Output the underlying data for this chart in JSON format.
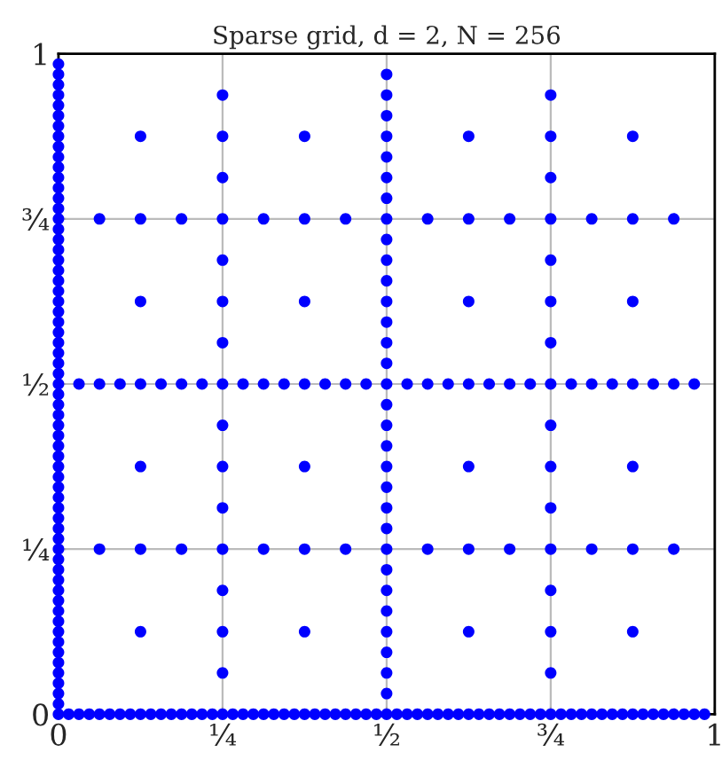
{
  "chart_data": {
    "type": "scatter",
    "title": "Sparse grid, d = 2, N = 256",
    "xlim": [
      0,
      1
    ],
    "ylim": [
      0,
      1
    ],
    "xticks": [
      0,
      {
        "value": 0.25,
        "label": "¼"
      },
      {
        "value": 0.5,
        "label": "½"
      },
      {
        "value": 0.75,
        "label": "¾"
      },
      1
    ],
    "yticks": [
      0,
      {
        "value": 0.25,
        "label": "¼"
      },
      {
        "value": 0.5,
        "label": "½"
      },
      {
        "value": 0.75,
        "label": "¾"
      },
      1
    ],
    "grid": true,
    "marker": "circle",
    "series": [
      {
        "color": "#0000ff",
        "x": [
          0,
          0,
          0,
          0,
          0,
          0,
          0,
          0,
          0,
          0,
          0,
          0,
          0,
          0,
          0,
          0,
          0,
          0,
          0,
          0,
          0,
          0,
          0,
          0,
          0,
          0,
          0,
          0,
          0,
          0,
          0,
          0,
          0,
          0,
          0,
          0,
          0,
          0,
          0,
          0,
          0,
          0,
          0,
          0,
          0,
          0,
          0,
          0,
          0,
          0,
          0,
          0,
          0,
          0,
          0,
          0,
          0,
          0,
          0,
          0,
          0,
          0,
          0,
          0
        ],
        "values": [
          0,
          0.015625,
          0.03125,
          0.046875,
          0.0625,
          0.078125,
          0.09375,
          0.109375,
          0.125,
          0.140625,
          0.15625,
          0.171875,
          0.1875,
          0.203125,
          0.21875,
          0.234375,
          0.25,
          0.265625,
          0.28125,
          0.296875,
          0.3125,
          0.328125,
          0.34375,
          0.359375,
          0.375,
          0.390625,
          0.40625,
          0.421875,
          0.4375,
          0.453125,
          0.46875,
          0.484375,
          0.5,
          0.515625,
          0.53125,
          0.546875,
          0.5625,
          0.578125,
          0.59375,
          0.609375,
          0.625,
          0.640625,
          0.65625,
          0.671875,
          0.6875,
          0.703125,
          0.71875,
          0.734375,
          0.75,
          0.765625,
          0.78125,
          0.796875,
          0.8125,
          0.828125,
          0.84375,
          0.859375,
          0.875,
          0.890625,
          0.90625,
          0.921875,
          0.9375,
          0.953125,
          0.96875,
          0.984375
        ]
      },
      {
        "color": "#0000ff",
        "x": [
          0.5,
          0.5,
          0.5,
          0.5,
          0.5,
          0.5,
          0.5,
          0.5,
          0.5,
          0.5,
          0.5,
          0.5,
          0.5,
          0.5,
          0.5,
          0.5,
          0.5,
          0.5,
          0.5,
          0.5,
          0.5,
          0.5,
          0.5,
          0.5,
          0.5,
          0.5,
          0.5,
          0.5,
          0.5,
          0.5,
          0.5,
          0.5
        ],
        "values": [
          0,
          0.03125,
          0.0625,
          0.09375,
          0.125,
          0.15625,
          0.1875,
          0.21875,
          0.25,
          0.28125,
          0.3125,
          0.34375,
          0.375,
          0.40625,
          0.4375,
          0.46875,
          0.5,
          0.53125,
          0.5625,
          0.59375,
          0.625,
          0.65625,
          0.6875,
          0.71875,
          0.75,
          0.78125,
          0.8125,
          0.84375,
          0.875,
          0.90625,
          0.9375,
          0.96875
        ]
      },
      {
        "color": "#0000ff",
        "x": [
          0.25,
          0.25,
          0.25,
          0.25,
          0.25,
          0.25,
          0.25,
          0.25,
          0.25,
          0.25,
          0.25,
          0.25,
          0.25,
          0.25,
          0.25,
          0.25,
          0.75,
          0.75,
          0.75,
          0.75,
          0.75,
          0.75,
          0.75,
          0.75,
          0.75,
          0.75,
          0.75,
          0.75,
          0.75,
          0.75,
          0.75,
          0.75
        ],
        "values": [
          0,
          0.0625,
          0.125,
          0.1875,
          0.25,
          0.3125,
          0.375,
          0.4375,
          0.5,
          0.5625,
          0.625,
          0.6875,
          0.75,
          0.8125,
          0.875,
          0.9375,
          0,
          0.0625,
          0.125,
          0.1875,
          0.25,
          0.3125,
          0.375,
          0.4375,
          0.5,
          0.5625,
          0.625,
          0.6875,
          0.75,
          0.8125,
          0.875,
          0.9375
        ]
      },
      {
        "color": "#0000ff",
        "x": [
          0.125,
          0.125,
          0.125,
          0.125,
          0.125,
          0.125,
          0.125,
          0.125,
          0.375,
          0.375,
          0.375,
          0.375,
          0.375,
          0.375,
          0.375,
          0.375,
          0.625,
          0.625,
          0.625,
          0.625,
          0.625,
          0.625,
          0.625,
          0.625,
          0.875,
          0.875,
          0.875,
          0.875,
          0.875,
          0.875,
          0.875,
          0.875
        ],
        "values": [
          0,
          0.125,
          0.25,
          0.375,
          0.5,
          0.625,
          0.75,
          0.875,
          0,
          0.125,
          0.25,
          0.375,
          0.5,
          0.625,
          0.75,
          0.875,
          0,
          0.125,
          0.25,
          0.375,
          0.5,
          0.625,
          0.75,
          0.875,
          0,
          0.125,
          0.25,
          0.375,
          0.5,
          0.625,
          0.75,
          0.875
        ]
      },
      {
        "color": "#0000ff",
        "x": [
          0.0625,
          0.0625,
          0.0625,
          0.0625,
          0.1875,
          0.1875,
          0.1875,
          0.1875,
          0.3125,
          0.3125,
          0.3125,
          0.3125,
          0.4375,
          0.4375,
          0.4375,
          0.4375,
          0.5625,
          0.5625,
          0.5625,
          0.5625,
          0.6875,
          0.6875,
          0.6875,
          0.6875,
          0.8125,
          0.8125,
          0.8125,
          0.8125,
          0.9375,
          0.9375,
          0.9375,
          0.9375
        ],
        "values": [
          0,
          0.25,
          0.5,
          0.75,
          0,
          0.25,
          0.5,
          0.75,
          0,
          0.25,
          0.5,
          0.75,
          0,
          0.25,
          0.5,
          0.75,
          0,
          0.25,
          0.5,
          0.75,
          0,
          0.25,
          0.5,
          0.75,
          0,
          0.25,
          0.5,
          0.75,
          0,
          0.25,
          0.5,
          0.75
        ]
      },
      {
        "color": "#0000ff",
        "x": [
          0.03125,
          0.03125,
          0.09375,
          0.09375,
          0.15625,
          0.15625,
          0.21875,
          0.21875,
          0.28125,
          0.28125,
          0.34375,
          0.34375,
          0.40625,
          0.40625,
          0.46875,
          0.46875,
          0.53125,
          0.53125,
          0.59375,
          0.59375,
          0.65625,
          0.65625,
          0.71875,
          0.71875,
          0.78125,
          0.78125,
          0.84375,
          0.84375,
          0.90625,
          0.90625,
          0.96875,
          0.96875
        ],
        "values": [
          0,
          0.5,
          0,
          0.5,
          0,
          0.5,
          0,
          0.5,
          0,
          0.5,
          0,
          0.5,
          0,
          0.5,
          0,
          0.5,
          0,
          0.5,
          0,
          0.5,
          0,
          0.5,
          0,
          0.5,
          0,
          0.5,
          0,
          0.5,
          0,
          0.5,
          0,
          0.5
        ]
      },
      {
        "color": "#0000ff",
        "x": [
          0.015625,
          0.046875,
          0.078125,
          0.109375,
          0.140625,
          0.171875,
          0.203125,
          0.234375,
          0.265625,
          0.296875,
          0.328125,
          0.359375,
          0.390625,
          0.421875,
          0.453125,
          0.484375,
          0.515625,
          0.546875,
          0.578125,
          0.609375,
          0.640625,
          0.671875,
          0.703125,
          0.734375,
          0.765625,
          0.796875,
          0.828125,
          0.859375,
          0.890625,
          0.921875,
          0.953125,
          0.984375
        ],
        "values": [
          0,
          0,
          0,
          0,
          0,
          0,
          0,
          0,
          0,
          0,
          0,
          0,
          0,
          0,
          0,
          0,
          0,
          0,
          0,
          0,
          0,
          0,
          0,
          0,
          0,
          0,
          0,
          0,
          0,
          0,
          0,
          0
        ]
      }
    ]
  }
}
